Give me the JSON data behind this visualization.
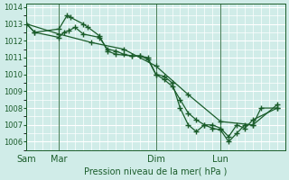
{
  "title": "Pression niveau de la mer( hPa )",
  "bg_color": "#d0ece8",
  "grid_color": "#ffffff",
  "line_color": "#1a5c2a",
  "ylim": [
    1005.5,
    1014.2
  ],
  "yticks": [
    1006,
    1007,
    1008,
    1009,
    1010,
    1011,
    1012,
    1013,
    1014
  ],
  "day_labels": [
    "Sam",
    "Mar",
    "Dim",
    "Lun"
  ],
  "day_positions": [
    0,
    2,
    8,
    12
  ],
  "xlim": [
    0,
    16
  ],
  "line1_x": [
    0,
    0.5,
    2,
    2.5,
    2.7,
    3.5,
    3.8,
    4.5,
    5.0,
    5.5,
    6.5,
    7.0,
    7.5,
    8.0,
    8.5,
    9.0,
    9.5,
    10.0,
    10.5,
    11.0,
    11.5,
    12.0,
    12.5,
    13.0,
    13.5,
    14.0,
    14.5,
    15.5
  ],
  "line1_y": [
    1013.0,
    1012.5,
    1012.7,
    1013.5,
    1013.4,
    1013.0,
    1012.8,
    1012.3,
    1011.4,
    1011.2,
    1011.1,
    1011.1,
    1010.9,
    1010.0,
    1009.9,
    1009.5,
    1008.0,
    1007.0,
    1006.6,
    1007.0,
    1006.8,
    1006.7,
    1006.0,
    1006.5,
    1007.0,
    1007.0,
    1008.0,
    1008.0
  ],
  "line2_x": [
    0,
    0.5,
    2,
    2.3,
    2.6,
    3.0,
    3.5,
    4.5,
    5.0,
    5.5,
    6.0,
    6.5,
    7.0,
    7.5,
    8.0,
    8.5,
    9.0,
    9.5,
    10.0,
    10.5,
    11.0,
    11.5,
    12.0,
    12.5,
    13.0,
    13.5,
    14.0,
    15.5
  ],
  "line2_y": [
    1013.0,
    1012.5,
    1012.2,
    1012.5,
    1012.6,
    1012.8,
    1012.4,
    1012.2,
    1011.5,
    1011.4,
    1011.2,
    1011.1,
    1011.1,
    1011.0,
    1010.0,
    1009.7,
    1009.3,
    1008.5,
    1007.7,
    1007.3,
    1007.0,
    1007.0,
    1006.8,
    1006.3,
    1007.0,
    1006.8,
    1007.3,
    1008.0
  ],
  "line3_x": [
    0,
    2,
    4,
    6,
    8,
    10,
    12,
    14,
    15.5
  ],
  "line3_y": [
    1013.0,
    1012.4,
    1011.9,
    1011.5,
    1010.5,
    1008.8,
    1007.2,
    1007.0,
    1008.2
  ]
}
